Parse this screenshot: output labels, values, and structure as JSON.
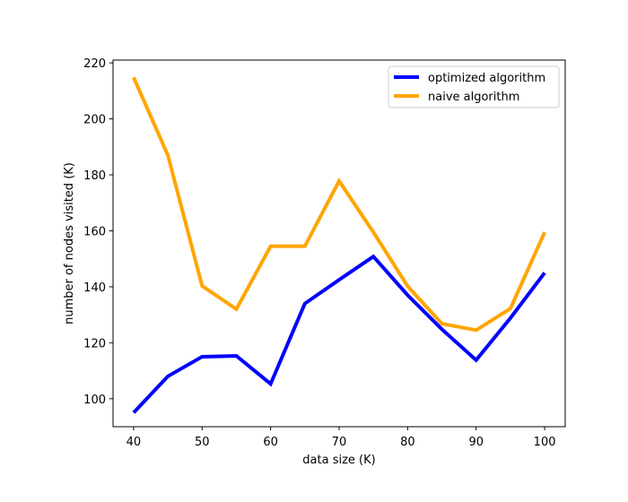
{
  "chart_data": {
    "type": "line",
    "title": "",
    "xlabel": "data size (K)",
    "ylabel": "number of nodes visited (K)",
    "x": [
      40,
      45,
      50,
      55,
      60,
      65,
      70,
      75,
      80,
      85,
      90,
      95,
      100
    ],
    "xlim": [
      37,
      103
    ],
    "ylim": [
      90,
      221
    ],
    "xticks": [
      40,
      50,
      60,
      70,
      80,
      90,
      100
    ],
    "yticks": [
      100,
      120,
      140,
      160,
      180,
      200,
      220
    ],
    "grid": false,
    "legend_position": "upper right",
    "series": [
      {
        "name": "optimized algorithm",
        "color": "#0000ff",
        "values": [
          95,
          108,
          115,
          115.3,
          105.3,
          134,
          142.5,
          150.8,
          137,
          124.8,
          113.8,
          128.8,
          145
        ]
      },
      {
        "name": "naive algorithm",
        "color": "#ffa500",
        "values": [
          214.8,
          187,
          140.3,
          132,
          154.5,
          154.5,
          177.8,
          159.5,
          140.2,
          126.8,
          124.5,
          132.2,
          159.5
        ]
      }
    ]
  }
}
